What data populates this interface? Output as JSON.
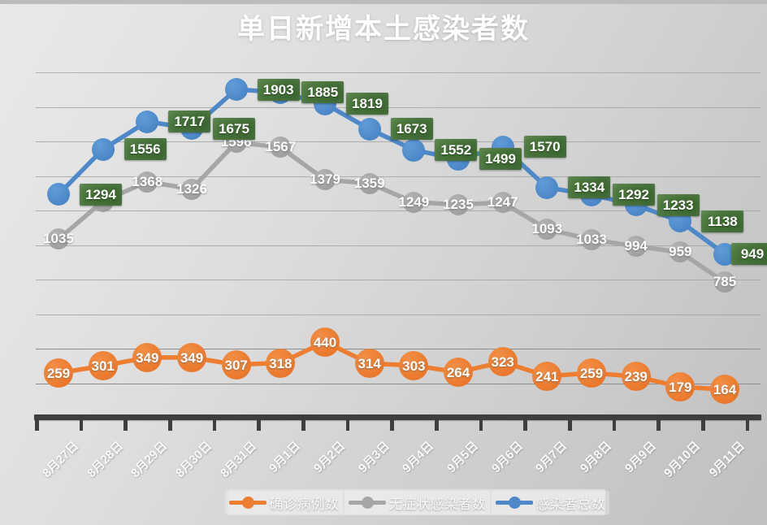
{
  "title": "单日新增本土感染者数",
  "colors": {
    "confirmed": "#ED7D31",
    "asymptomatic": "#A6A6A6",
    "total": "#4E88C8",
    "total_label_bg": "#3F6C33",
    "axis": "#3E3E3E",
    "gridline": "#A4A4A4",
    "label_text": "#FFFFFF",
    "background": "#D6D6D6"
  },
  "legend": {
    "items": [
      {
        "id": "confirmed",
        "label": "确诊病例数",
        "color": "#ED7D31"
      },
      {
        "id": "asymptomatic",
        "label": "无症状感染者数",
        "color": "#A6A6A6"
      },
      {
        "id": "total",
        "label": "感染者总数",
        "color": "#4E88C8"
      }
    ]
  },
  "chart_data": {
    "type": "line",
    "title": "单日新增本土感染者数",
    "x": [
      "8月27日",
      "8月28日",
      "8月29日",
      "8月30日",
      "8月31日",
      "9月1日",
      "9月2日",
      "9月3日",
      "9月4日",
      "9月5日",
      "9月6日",
      "9月7日",
      "9月8日",
      "9月9日",
      "9月10日",
      "9月11日"
    ],
    "series": [
      {
        "name": "确诊病例数",
        "key": "confirmed",
        "color": "#ED7D31",
        "values": [
          259,
          301,
          349,
          349,
          307,
          318,
          440,
          314,
          303,
          264,
          323,
          241,
          259,
          239,
          179,
          164
        ],
        "label_style": "white-text-on-marker"
      },
      {
        "name": "无症状感染者数",
        "key": "asymptomatic",
        "color": "#A6A6A6",
        "values": [
          1035,
          1255,
          1368,
          1326,
          1596,
          1567,
          1379,
          1359,
          1249,
          1235,
          1247,
          1093,
          1033,
          994,
          959,
          785
        ],
        "label_style": "white-text-at-marker",
        "hidden_label_indices": [
          1
        ]
      },
      {
        "name": "感染者总数",
        "key": "total",
        "color": "#4E88C8",
        "values": [
          1294,
          1556,
          1717,
          1675,
          1903,
          1885,
          1819,
          1673,
          1552,
          1499,
          1570,
          1334,
          1292,
          1233,
          1138,
          949
        ],
        "label_style": "green-box-right-of-marker",
        "label_bg": "#3F6C33"
      }
    ],
    "ylim": [
      0,
      2100
    ],
    "gridlines": {
      "start": 200,
      "step": 200,
      "end": 2000,
      "labels_shown": false
    },
    "y_axis_labels_shown": false,
    "legend_position": "bottom-center",
    "x_label_rotation_deg": -45
  }
}
